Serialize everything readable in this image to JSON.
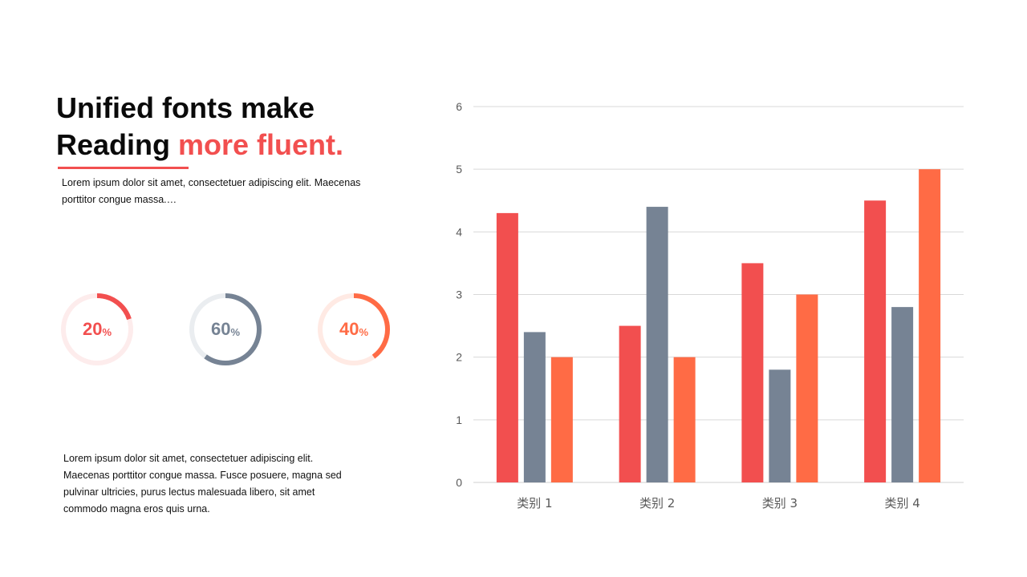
{
  "heading": {
    "line1": "Unified fonts make",
    "line2_part1": "Reading ",
    "line2_accent": "more fluent."
  },
  "intro_text": "Lorem ipsum dolor sit amet, consectetuer adipiscing elit. Maecenas porttitor congue massa.…",
  "body_text": "Lorem ipsum dolor sit amet, consectetuer adipiscing elit. Maecenas porttitor congue massa. Fusce posuere, magna sed pulvinar ultricies, purus lectus malesuada libero, sit amet commodo magna eros quis urna.",
  "rings": [
    {
      "value": 20,
      "label": "20",
      "unit": "%",
      "color": "#f24f4f",
      "track": "#fdecec"
    },
    {
      "value": 60,
      "label": "60",
      "unit": "%",
      "color": "#768394",
      "track": "#eaedf0"
    },
    {
      "value": 40,
      "label": "40",
      "unit": "%",
      "color": "#ff6b45",
      "track": "#ffeae4"
    }
  ],
  "chart_data": {
    "type": "bar",
    "categories": [
      "类别 1",
      "类别 2",
      "类别 3",
      "类别 4"
    ],
    "series": [
      {
        "values": [
          4.3,
          2.5,
          3.5,
          4.5
        ],
        "color": "#f24f4f"
      },
      {
        "values": [
          2.4,
          4.4,
          1.8,
          2.8
        ],
        "color": "#768394"
      },
      {
        "values": [
          2,
          2,
          3,
          5
        ],
        "color": "#ff6b45"
      }
    ],
    "ylim": [
      0,
      6
    ],
    "yticks": [
      "0",
      "1",
      "2",
      "3",
      "4",
      "5",
      "6"
    ],
    "grid": true,
    "legend": "none"
  }
}
